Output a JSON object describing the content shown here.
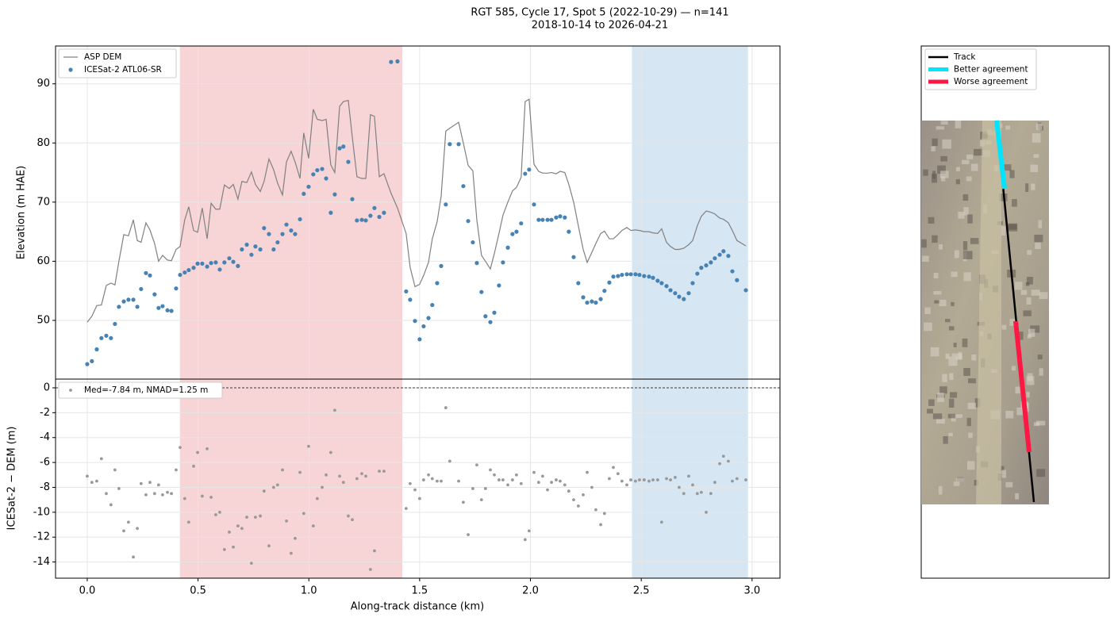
{
  "chart_data": [
    {
      "type": "line",
      "title": "RGT 585, Cycle 17, Spot 5 (2022-10-29) — n=141",
      "subtitle": "2018-10-14 to 2026-04-21",
      "ylabel": "Elevation (m HAE)",
      "x": [
        0,
        0.021,
        0.043,
        0.064,
        0.086,
        0.107,
        0.125,
        0.143,
        0.165,
        0.186,
        0.208,
        0.226,
        0.243,
        0.265,
        0.283,
        0.304,
        0.322,
        0.34,
        0.362,
        0.38,
        0.401,
        0.419,
        0.44,
        0.458,
        0.48,
        0.498,
        0.519,
        0.541,
        0.559,
        0.58,
        0.598,
        0.619,
        0.641,
        0.659,
        0.68,
        0.698,
        0.72,
        0.741,
        0.759,
        0.781,
        0.798,
        0.82,
        0.841,
        0.859,
        0.881,
        0.899,
        0.92,
        0.938,
        0.96,
        0.977,
        0.999,
        1.02,
        1.038,
        1.06,
        1.078,
        1.099,
        1.117,
        1.139,
        1.156,
        1.178,
        1.196,
        1.217,
        1.239,
        1.257,
        1.278,
        1.296,
        1.318,
        1.339,
        1.371,
        1.4,
        1.439,
        1.457,
        1.479,
        1.5,
        1.518,
        1.54,
        1.557,
        1.579,
        1.597,
        1.618,
        1.636,
        1.676,
        1.697,
        1.719,
        1.74,
        1.758,
        1.779,
        1.797,
        1.819,
        1.837,
        1.858,
        1.876,
        1.898,
        1.919,
        1.937,
        1.958,
        1.976,
        1.994,
        2.016,
        2.037,
        2.055,
        2.077,
        2.095,
        2.116,
        2.134,
        2.155,
        2.173,
        2.195,
        2.216,
        2.238,
        2.256,
        2.277,
        2.295,
        2.317,
        2.334,
        2.356,
        2.374,
        2.395,
        2.413,
        2.435,
        2.453,
        2.474,
        2.492,
        2.513,
        2.535,
        2.553,
        2.574,
        2.592,
        2.614,
        2.632,
        2.653,
        2.671,
        2.692,
        2.714,
        2.732,
        2.753,
        2.771,
        2.793,
        2.814,
        2.832,
        2.854,
        2.871,
        2.893,
        2.911,
        2.932,
        2.972
      ],
      "series": [
        {
          "name": "ASP DEM",
          "type": "line",
          "color": "#808080",
          "values": [
            49.7,
            50.7,
            52.5,
            52.6,
            55.9,
            56.3,
            56.0,
            60.0,
            64.5,
            64.3,
            67.0,
            63.5,
            63.2,
            66.5,
            65.3,
            63.0,
            60.0,
            61.0,
            60.2,
            60.1,
            62.0,
            62.5,
            67.0,
            69.2,
            65.2,
            64.9,
            69.0,
            63.8,
            69.8,
            68.8,
            68.8,
            72.9,
            72.3,
            73.0,
            70.5,
            73.5,
            73.3,
            75.1,
            73.0,
            71.8,
            73.5,
            77.3,
            75.5,
            73.2,
            71.2,
            76.8,
            78.6,
            76.8,
            74.0,
            81.7,
            77.4,
            85.7,
            84.0,
            83.8,
            84.0,
            76.3,
            75.0,
            86.2,
            87.0,
            87.2,
            81.0,
            74.3,
            74.0,
            74.0,
            84.8,
            84.5,
            74.3,
            74.8,
            71.5,
            69.0,
            64.7,
            59.0,
            55.7,
            56.1,
            57.6,
            59.8,
            63.8,
            66.7,
            71.0,
            82.0,
            82.5,
            83.5,
            80.0,
            76.2,
            75.3,
            67.0,
            61.0,
            60.0,
            58.7,
            61.3,
            64.7,
            67.8,
            70.0,
            71.9,
            72.5,
            74.2,
            87.0,
            87.4,
            76.4,
            75.2,
            74.9,
            74.9,
            75.0,
            74.8,
            75.2,
            75.0,
            73.0,
            70.0,
            66.0,
            62.0,
            59.8,
            61.5,
            63.0,
            64.7,
            65.1,
            63.8,
            63.8,
            64.5,
            65.2,
            65.7,
            65.2,
            65.3,
            65.2,
            65.0,
            65.0,
            64.8,
            64.7,
            65.5,
            63.2,
            62.5,
            62.0,
            62.0,
            62.2,
            62.8,
            63.5,
            66.0,
            67.6,
            68.5,
            68.3,
            68.0,
            67.3,
            67.1,
            66.5,
            65.2,
            63.5,
            62.6
          ]
        },
        {
          "name": "ICESat-2 ATL06-SR",
          "type": "scatter",
          "color": "#4682b4",
          "values": [
            42.6,
            43.1,
            45.1,
            47.0,
            47.4,
            47.0,
            49.4,
            52.3,
            53.2,
            53.5,
            53.5,
            52.3,
            55.3,
            58.0,
            57.6,
            54.4,
            52.1,
            52.4,
            51.7,
            51.6,
            55.4,
            57.7,
            58.1,
            58.5,
            58.9,
            59.6,
            59.6,
            59.1,
            59.7,
            59.8,
            58.6,
            59.8,
            60.5,
            59.9,
            59.2,
            62.0,
            62.8,
            61.1,
            62.5,
            62.0,
            65.6,
            64.6,
            62.0,
            63.2,
            64.6,
            66.2,
            65.2,
            64.6,
            67.1,
            71.4,
            72.6,
            74.7,
            75.4,
            75.6,
            74.0,
            68.2,
            71.3,
            79.1,
            79.4,
            76.8,
            70.5,
            66.9,
            67.0,
            66.9,
            67.7,
            69.0,
            67.5,
            68.2,
            93.7,
            93.8,
            54.9,
            53.5,
            49.9,
            46.8,
            49.0,
            50.4,
            52.6,
            56.3,
            59.2,
            69.6,
            79.8,
            79.8,
            72.7,
            66.8,
            63.2,
            59.7,
            54.8,
            50.7,
            49.7,
            51.3,
            55.9,
            59.8,
            62.3,
            64.6,
            65.0,
            66.4,
            74.8,
            75.5,
            69.6,
            67.0,
            67.0,
            67.0,
            67.0,
            67.4,
            67.6,
            67.4,
            65.0,
            60.7,
            56.3,
            53.9,
            53.0,
            53.2,
            53.0,
            53.6,
            55.0,
            56.4,
            57.4,
            57.5,
            57.7,
            57.8,
            57.8,
            57.8,
            57.7,
            57.5,
            57.4,
            57.2,
            56.7,
            56.3,
            55.8,
            55.1,
            54.6,
            54.0,
            53.6,
            54.6,
            56.3,
            57.9,
            58.9,
            59.3,
            59.8,
            60.5,
            61.1,
            61.7,
            60.9,
            58.3,
            56.8,
            55.1
          ]
        }
      ],
      "xlim": [
        -0.143,
        3.126
      ],
      "ylim": [
        40.07,
        96.4
      ],
      "yticks": [
        50,
        60,
        70,
        80,
        90
      ],
      "spans": [
        {
          "range": [
            0.42,
            1.42
          ],
          "color": "#f7d4d6"
        },
        {
          "range": [
            2.46,
            2.98
          ],
          "color": "#d6e6f2"
        }
      ],
      "grid": true,
      "legend": "upper left"
    },
    {
      "type": "scatter",
      "xlabel": "Along-track distance (km)",
      "ylabel": "ICESat-2 − DEM (m)",
      "series": [
        {
          "name": "Med=-7.84 m, NMAD=1.25 m",
          "color": "#999999",
          "values": [
            -7.1,
            -7.6,
            -7.5,
            -5.7,
            -8.5,
            -9.4,
            -6.6,
            -8.1,
            -11.5,
            -10.8,
            -13.6,
            -11.3,
            -7.7,
            -8.6,
            -7.6,
            -8.5,
            -7.8,
            -8.6,
            -8.4,
            -8.5,
            -6.6,
            -4.8,
            -8.9,
            -10.8,
            -6.3,
            -5.2,
            -8.7,
            -4.9,
            -8.8,
            -10.2,
            -10.0,
            -13.0,
            -11.6,
            -12.8,
            -11.1,
            -11.3,
            -10.4,
            -14.1,
            -10.4,
            -10.3,
            -8.3,
            -12.7,
            -8.0,
            -7.8,
            -6.6,
            -10.7,
            -13.3,
            -12.1,
            -6.8,
            -10.1,
            -4.7,
            -11.1,
            -8.9,
            -8.0,
            -7.0,
            -5.2,
            -1.8,
            -7.1,
            -7.6,
            -10.3,
            -10.6,
            -7.3,
            -6.9,
            -7.1,
            -14.6,
            -13.1,
            -6.7,
            -6.7,
            null,
            null,
            -9.7,
            -7.7,
            -8.2,
            -8.9,
            -7.4,
            -7.0,
            -7.3,
            -7.5,
            -7.5,
            -1.6,
            -5.9,
            -7.5,
            -9.2,
            -11.8,
            -8.1,
            -6.2,
            -9.0,
            -8.1,
            -6.6,
            -7.0,
            -7.4,
            -7.4,
            -7.8,
            -7.4,
            -7.0,
            -7.7,
            -12.2,
            -11.5,
            -6.8,
            -7.6,
            -7.1,
            -8.2,
            -7.6,
            -7.4,
            -7.5,
            -7.8,
            -8.3,
            -9.0,
            -9.5,
            -8.6,
            -6.8,
            -8.0,
            -9.8,
            -11.0,
            -10.1,
            -7.3,
            -6.4,
            -6.9,
            -7.5,
            -7.8,
            -7.4,
            -7.5,
            -7.4,
            -7.4,
            -7.5,
            -7.4,
            -7.4,
            -10.8,
            -7.3,
            -7.4,
            -7.2,
            -8.0,
            -8.5,
            -7.1,
            -7.8,
            -8.5,
            -8.4,
            -10.0,
            -8.5,
            -7.6,
            -6.1,
            -5.5,
            -5.9,
            -7.5,
            -7.3,
            -7.4
          ]
        }
      ],
      "xlim": [
        -0.143,
        3.126
      ],
      "ylim": [
        -15.3,
        0.7
      ],
      "yticks": [
        -14,
        -12,
        -10,
        -8,
        -6,
        -4,
        -2,
        0
      ],
      "xticks": [
        {
          "value": 0,
          "label": "0.0"
        },
        0.5,
        {
          "value": 1,
          "label": "1.0"
        },
        1.5,
        {
          "value": 2,
          "label": "2.0"
        },
        2.5,
        {
          "value": 3,
          "label": "3.0"
        }
      ],
      "hline": 0,
      "grid": true,
      "legend": "upper left"
    }
  ],
  "map": {
    "legend": [
      {
        "name": "Track",
        "color": "#000000"
      },
      {
        "name": "Better agreement",
        "color": "#00e5ff"
      },
      {
        "name": "Worse agreement",
        "color": "#ff1744"
      }
    ]
  }
}
